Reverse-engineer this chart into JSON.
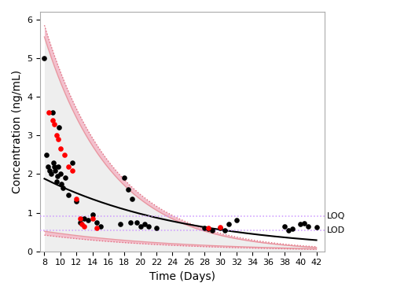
{
  "title": "",
  "xlabel": "Time (Days)",
  "ylabel": "Concentration (ng/mL)",
  "xlim": [
    7.5,
    43
  ],
  "ylim": [
    0,
    6.2
  ],
  "xticks": [
    8,
    10,
    12,
    14,
    16,
    18,
    20,
    22,
    24,
    26,
    28,
    30,
    32,
    34,
    36,
    38,
    40,
    42
  ],
  "yticks": [
    0,
    1,
    2,
    3,
    4,
    5,
    6
  ],
  "LOQ": 0.9,
  "LOD": 0.55,
  "LOQ_color": "#cc99ff",
  "LOD_color": "#cc99ff",
  "mean_curve_color": "#000000",
  "ci_fill_color": "#e8d0d8",
  "ci_outer_color": "#e07080",
  "black_dots": [
    [
      8.0,
      5.0
    ],
    [
      8.2,
      2.5
    ],
    [
      8.4,
      2.2
    ],
    [
      8.6,
      2.1
    ],
    [
      8.8,
      2.0
    ],
    [
      9.0,
      3.6
    ],
    [
      9.1,
      2.3
    ],
    [
      9.2,
      2.2
    ],
    [
      9.35,
      2.1
    ],
    [
      9.5,
      1.8
    ],
    [
      9.6,
      1.95
    ],
    [
      9.7,
      2.2
    ],
    [
      9.8,
      3.2
    ],
    [
      10.0,
      2.0
    ],
    [
      10.1,
      1.75
    ],
    [
      10.3,
      1.65
    ],
    [
      10.6,
      1.9
    ],
    [
      11.0,
      1.45
    ],
    [
      11.5,
      2.3
    ],
    [
      12.0,
      1.3
    ],
    [
      12.5,
      0.75
    ],
    [
      13.0,
      0.85
    ],
    [
      13.5,
      0.8
    ],
    [
      14.0,
      0.95
    ],
    [
      14.5,
      0.75
    ],
    [
      15.0,
      0.65
    ],
    [
      17.5,
      0.7
    ],
    [
      18.0,
      1.9
    ],
    [
      18.5,
      1.6
    ],
    [
      18.8,
      0.75
    ],
    [
      19.0,
      1.35
    ],
    [
      19.5,
      0.75
    ],
    [
      20.0,
      0.65
    ],
    [
      20.5,
      0.7
    ],
    [
      21.0,
      0.65
    ],
    [
      22.0,
      0.6
    ],
    [
      28.0,
      0.6
    ],
    [
      28.5,
      0.58
    ],
    [
      29.0,
      0.55
    ],
    [
      30.0,
      0.6
    ],
    [
      30.5,
      0.55
    ],
    [
      31.0,
      0.7
    ],
    [
      32.0,
      0.8
    ],
    [
      38.0,
      0.65
    ],
    [
      38.5,
      0.55
    ],
    [
      39.0,
      0.58
    ],
    [
      40.0,
      0.7
    ],
    [
      40.5,
      0.72
    ],
    [
      41.0,
      0.65
    ],
    [
      42.0,
      0.62
    ]
  ],
  "red_dots": [
    [
      8.5,
      3.6
    ],
    [
      9.0,
      3.4
    ],
    [
      9.2,
      3.3
    ],
    [
      9.5,
      3.0
    ],
    [
      9.7,
      2.9
    ],
    [
      10.0,
      2.65
    ],
    [
      10.5,
      2.5
    ],
    [
      11.0,
      2.2
    ],
    [
      11.5,
      2.1
    ],
    [
      12.0,
      1.35
    ],
    [
      12.5,
      0.85
    ],
    [
      12.7,
      0.7
    ],
    [
      13.0,
      0.65
    ],
    [
      14.0,
      0.85
    ],
    [
      14.5,
      0.6
    ],
    [
      28.5,
      0.6
    ],
    [
      30.0,
      0.62
    ]
  ],
  "upper_outer_a": 5.85,
  "upper_outer_b": -0.115,
  "lower_outer_a": 0.42,
  "lower_outer_b": -0.062,
  "upper_ci_a": 5.55,
  "upper_ci_b": -0.118,
  "lower_ci_a": 0.52,
  "lower_ci_b": -0.06,
  "mean_a": 1.88,
  "mean_b": -0.055,
  "background_color": "#ffffff"
}
